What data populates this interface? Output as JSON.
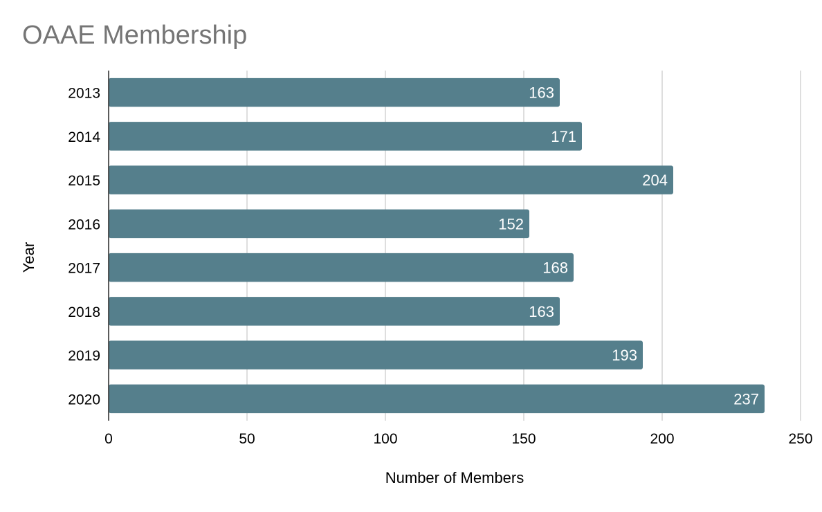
{
  "chart_data": {
    "type": "bar",
    "orientation": "horizontal",
    "title": "OAAE Membership",
    "xlabel": "Number of Members",
    "ylabel": "Year",
    "categories": [
      "2013",
      "2014",
      "2015",
      "2016",
      "2017",
      "2018",
      "2019",
      "2020"
    ],
    "values": [
      163,
      171,
      204,
      152,
      168,
      163,
      193,
      237
    ],
    "xlim": [
      0,
      250
    ],
    "xticks": [
      0,
      50,
      100,
      150,
      200,
      250
    ],
    "grid": true,
    "legend": "none",
    "data_labels": true,
    "bar_color": "#557f8c",
    "label_color": "#ffffff",
    "grid_color": "#cccccc",
    "title_color": "#757575"
  }
}
